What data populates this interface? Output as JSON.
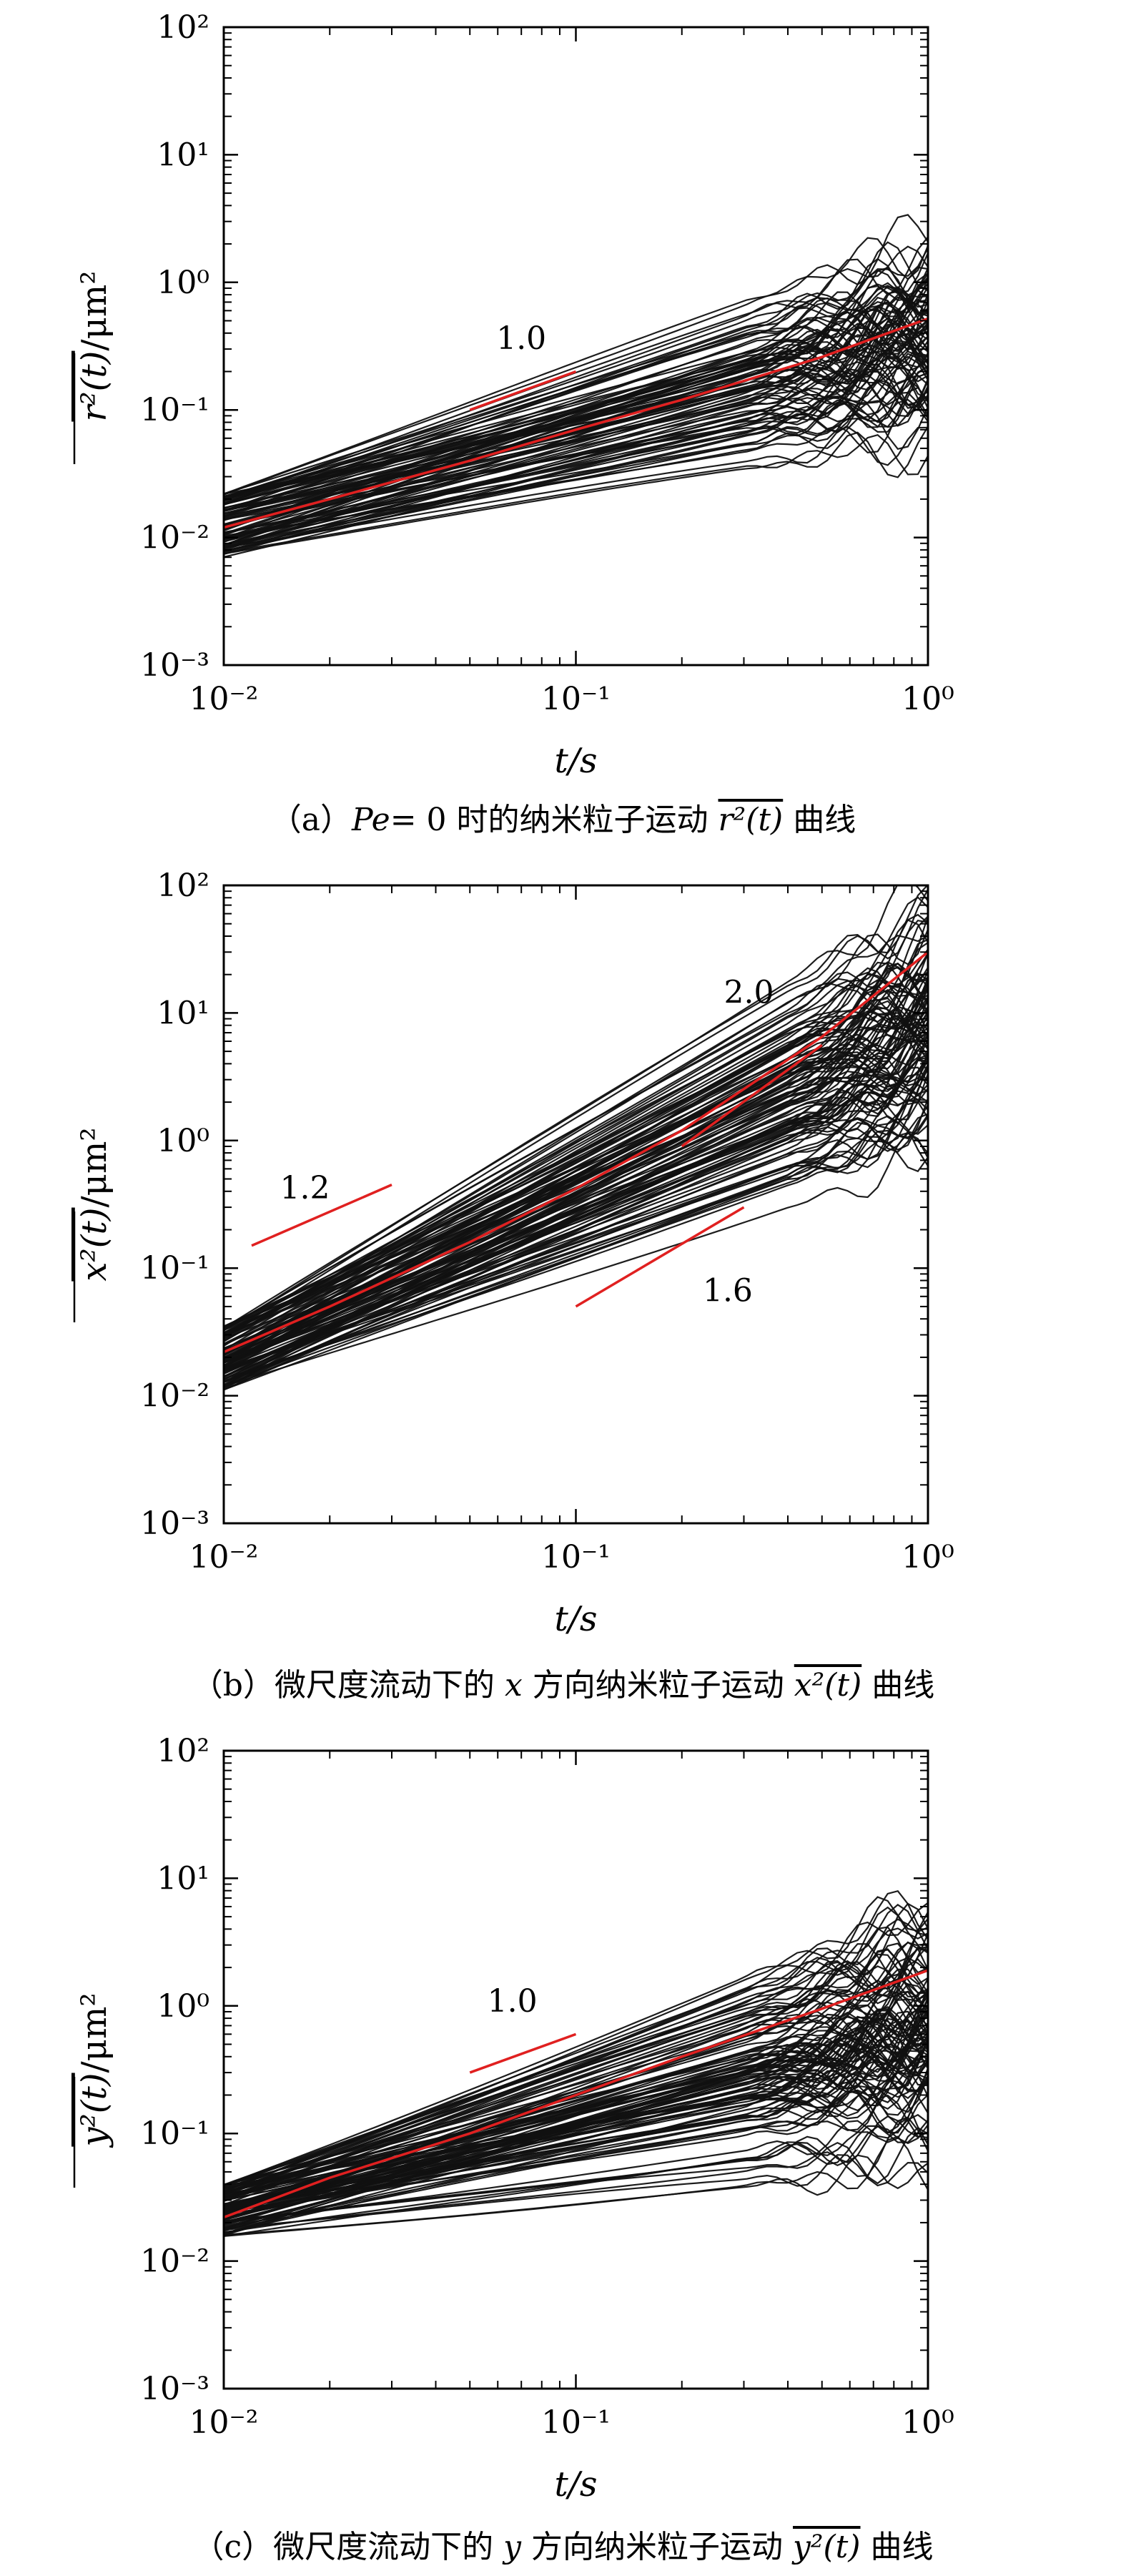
{
  "chart_data": [
    {
      "type": "line",
      "title": "",
      "caption": {
        "prefix": "（a）",
        "pe": "Pe",
        "middle": "= 0 时的纳米粒子运动",
        "quantity": "r²(t)",
        "suffix": "曲线"
      },
      "xlabel": "t/s",
      "ylabel_quantity": "r²(t)",
      "ylabel_unit": "/μm²",
      "xscale": "log",
      "yscale": "log",
      "xlim": [
        0.01,
        1
      ],
      "ylim": [
        0.001,
        100
      ],
      "x_tick_labels": [
        "10⁻²",
        "10⁻¹",
        "10⁰"
      ],
      "y_tick_labels": [
        "10⁻³",
        "10⁻²",
        "10⁻¹",
        "10⁰",
        "10¹",
        "10²"
      ],
      "ensemble": {
        "color": "#111111",
        "count": 90,
        "start_range": [
          0.007,
          0.022
        ],
        "end_range": [
          0.05,
          2.6
        ],
        "noise_onset": 0.3
      },
      "mean_series": {
        "name": "mean",
        "color": "#e02020",
        "x": [
          0.01,
          0.02,
          0.05,
          0.1,
          0.2,
          0.5,
          1
        ],
        "y": [
          0.012,
          0.02,
          0.04,
          0.07,
          0.12,
          0.26,
          0.52
        ]
      },
      "slope_refs": [
        {
          "label": "1.0",
          "x": [
            0.05,
            0.1
          ],
          "y": [
            0.1,
            0.2
          ],
          "label_at": [
            0.07,
            0.3
          ]
        }
      ]
    },
    {
      "type": "line",
      "title": "",
      "caption": {
        "prefix": "（b）",
        "middle": "微尺度流动下的",
        "var": "x",
        "middle2": "方向纳米粒子运动",
        "quantity": "x²(t)",
        "suffix": "曲线"
      },
      "xlabel": "t/s",
      "ylabel_quantity": "x²(t)",
      "ylabel_unit": "/μm²",
      "xscale": "log",
      "yscale": "log",
      "xlim": [
        0.01,
        1
      ],
      "ylim": [
        0.001,
        100
      ],
      "x_tick_labels": [
        "10⁻²",
        "10⁻¹",
        "10⁰"
      ],
      "y_tick_labels": [
        "10⁻³",
        "10⁻²",
        "10⁻¹",
        "10⁰",
        "10¹",
        "10²"
      ],
      "ensemble": {
        "color": "#111111",
        "count": 110,
        "start_range": [
          0.011,
          0.035
        ],
        "end_range": [
          0.6,
          100
        ],
        "noise_onset": 0.4
      },
      "mean_series": {
        "name": "mean",
        "color": "#e02020",
        "x": [
          0.01,
          0.02,
          0.05,
          0.1,
          0.2,
          0.5,
          1
        ],
        "y": [
          0.022,
          0.05,
          0.16,
          0.42,
          1.2,
          6.5,
          30
        ]
      },
      "slope_refs": [
        {
          "label": "1.2",
          "x": [
            0.012,
            0.03
          ],
          "y": [
            0.15,
            0.45
          ],
          "label_at": [
            0.017,
            0.35
          ]
        },
        {
          "label": "1.6",
          "x": [
            0.1,
            0.3
          ],
          "y": [
            0.05,
            0.3
          ],
          "label_at": [
            0.27,
            0.055
          ]
        },
        {
          "label": "2.0",
          "x": [
            0.2,
            0.5
          ],
          "y": [
            0.9,
            5.6
          ],
          "label_at": [
            0.31,
            12
          ]
        }
      ]
    },
    {
      "type": "line",
      "title": "",
      "caption": {
        "prefix": "（c）",
        "middle": "微尺度流动下的",
        "var": "y",
        "middle2": "方向纳米粒子运动",
        "quantity": "y²(t)",
        "suffix": "曲线"
      },
      "xlabel": "t/s",
      "ylabel_quantity": "y²(t)",
      "ylabel_unit": "/μm²",
      "xscale": "log",
      "yscale": "log",
      "xlim": [
        0.01,
        1
      ],
      "ylim": [
        0.001,
        100
      ],
      "x_tick_labels": [
        "10⁻²",
        "10⁻¹",
        "10⁰"
      ],
      "y_tick_labels": [
        "10⁻³",
        "10⁻²",
        "10⁻¹",
        "10⁰",
        "10¹",
        "10²"
      ],
      "ensemble": {
        "color": "#111111",
        "count": 110,
        "start_range": [
          0.015,
          0.04
        ],
        "end_range": [
          0.03,
          7.5
        ],
        "noise_onset": 0.3
      },
      "mean_series": {
        "name": "mean",
        "color": "#e02020",
        "x": [
          0.01,
          0.02,
          0.05,
          0.1,
          0.2,
          0.5,
          1
        ],
        "y": [
          0.022,
          0.045,
          0.1,
          0.2,
          0.4,
          0.95,
          1.9
        ]
      },
      "slope_refs": [
        {
          "label": "1.0",
          "x": [
            0.05,
            0.1
          ],
          "y": [
            0.3,
            0.6
          ],
          "label_at": [
            0.066,
            0.9
          ]
        }
      ]
    }
  ]
}
